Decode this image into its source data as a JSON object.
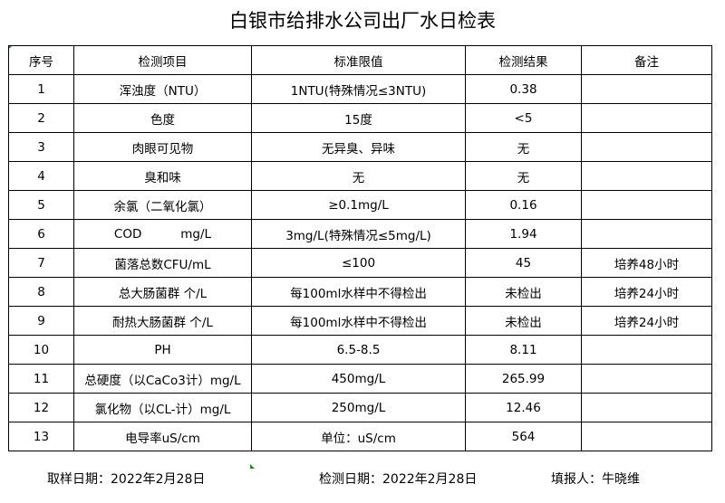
{
  "title": "白银市给排水公司出厂水日检表",
  "headers": [
    "序号",
    "检测项目",
    "标准限值",
    "检测结果",
    "备注"
  ],
  "rows": [
    [
      "1",
      "浑浊度（NTU）",
      "1NTU(特殊情况≤3NTU)",
      "0.38",
      ""
    ],
    [
      "2",
      "色度",
      "15度",
      "<5",
      ""
    ],
    [
      "3",
      "肉眼可见物",
      "无异臭、异味",
      "无",
      ""
    ],
    [
      "4",
      "臭和味",
      "无",
      "无",
      ""
    ],
    [
      "5",
      "余氯（二氧化氯）",
      "≥0.1mg/L",
      "0.16",
      ""
    ],
    [
      "6",
      "COD          mg/L",
      "3mg/L(特殊情况≤5mg/L)",
      "1.94",
      ""
    ],
    [
      "7",
      "菌落总数CFU/mL",
      "≤100",
      "45",
      "培养48小时"
    ],
    [
      "8",
      "总大肠菌群 个/L",
      "每100ml水样中不得检出",
      "未检出",
      "培养24小时"
    ],
    [
      "9",
      "耐热大肠菌群 个/L",
      "每100ml水样中不得检出",
      "未检出",
      "培养24小时"
    ],
    [
      "10",
      "PH",
      "6.5-8.5",
      "8.11",
      ""
    ],
    [
      "11",
      "总硬度（以CaCo3计）mg/L",
      "450mg/L",
      "265.99",
      ""
    ],
    [
      "12",
      "氯化物（以CL-计）mg/L",
      "250mg/L",
      "12.46",
      ""
    ],
    [
      "13",
      "电导率uS/cm",
      "单位：uS/cm",
      "564",
      ""
    ]
  ],
  "footer": {
    "sampling_date": "取样日期：2022年2月28日",
    "test_date": "检测日期：2022年2月28日",
    "reporter": "填报人：牛晓维"
  }
}
